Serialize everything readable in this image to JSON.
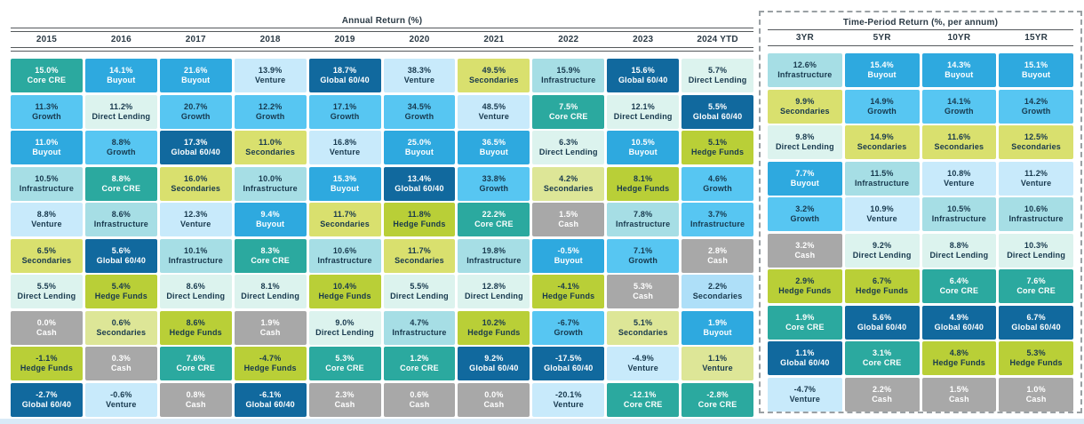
{
  "palette": {
    "cre": {
      "bg": "#2BA99F",
      "fg": "#FFFFFF"
    },
    "buy": {
      "bg": "#2EA9DF",
      "fg": "#FFFFFF"
    },
    "gro": {
      "bg": "#57C6F2",
      "fg": "#17384D"
    },
    "ven": {
      "bg": "#C8EAFB",
      "fg": "#17384D"
    },
    "g64": {
      "bg": "#11699E",
      "fg": "#FFFFFF"
    },
    "dl": {
      "bg": "#DCF3EE",
      "fg": "#17384D"
    },
    "inf": {
      "bg": "#A6DEE5",
      "fg": "#17384D"
    },
    "sec": {
      "bg": "#D9E06E",
      "fg": "#17384D"
    },
    "sec2": {
      "bg": "#DDE697",
      "fg": "#17384D"
    },
    "hf": {
      "bg": "#B9CF37",
      "fg": "#17384D"
    },
    "cash": {
      "bg": "#A8A8A8",
      "fg": "#FFFFFF"
    },
    "lblu": {
      "bg": "#AEDFF8",
      "fg": "#17384D"
    }
  },
  "chart_data": {
    "type": "table",
    "annual": {
      "title": "Annual Return (%)",
      "columns": [
        {
          "year": "2015",
          "cells": [
            {
              "v": "15.0%",
              "l": "Core CRE",
              "c": "cre"
            },
            {
              "v": "11.3%",
              "l": "Growth",
              "c": "gro"
            },
            {
              "v": "11.0%",
              "l": "Buyout",
              "c": "buy"
            },
            {
              "v": "10.5%",
              "l": "Infrastructure",
              "c": "inf"
            },
            {
              "v": "8.8%",
              "l": "Venture",
              "c": "ven"
            },
            {
              "v": "6.5%",
              "l": "Secondaries",
              "c": "sec"
            },
            {
              "v": "5.5%",
              "l": "Direct Lending",
              "c": "dl"
            },
            {
              "v": "0.0%",
              "l": "Cash",
              "c": "cash"
            },
            {
              "v": "-1.1%",
              "l": "Hedge Funds",
              "c": "hf"
            },
            {
              "v": "-2.7%",
              "l": "Global 60/40",
              "c": "g64"
            }
          ]
        },
        {
          "year": "2016",
          "cells": [
            {
              "v": "14.1%",
              "l": "Buyout",
              "c": "buy"
            },
            {
              "v": "11.2%",
              "l": "Direct Lending",
              "c": "dl"
            },
            {
              "v": "8.8%",
              "l": "Growth",
              "c": "gro"
            },
            {
              "v": "8.8%",
              "l": "Core CRE",
              "c": "cre"
            },
            {
              "v": "8.6%",
              "l": "Infrastructure",
              "c": "inf"
            },
            {
              "v": "5.6%",
              "l": "Global 60/40",
              "c": "g64"
            },
            {
              "v": "5.4%",
              "l": "Hedge Funds",
              "c": "hf"
            },
            {
              "v": "0.6%",
              "l": "Secondaries",
              "c": "sec2"
            },
            {
              "v": "0.3%",
              "l": "Cash",
              "c": "cash"
            },
            {
              "v": "-0.6%",
              "l": "Venture",
              "c": "ven"
            }
          ]
        },
        {
          "year": "2017",
          "cells": [
            {
              "v": "21.6%",
              "l": "Buyout",
              "c": "buy"
            },
            {
              "v": "20.7%",
              "l": "Growth",
              "c": "gro"
            },
            {
              "v": "17.3%",
              "l": "Global 60/40",
              "c": "g64"
            },
            {
              "v": "16.0%",
              "l": "Secondaries",
              "c": "sec"
            },
            {
              "v": "12.3%",
              "l": "Venture",
              "c": "ven"
            },
            {
              "v": "10.1%",
              "l": "Infrastructure",
              "c": "inf"
            },
            {
              "v": "8.6%",
              "l": "Direct Lending",
              "c": "dl"
            },
            {
              "v": "8.6%",
              "l": "Hedge Funds",
              "c": "hf"
            },
            {
              "v": "7.6%",
              "l": "Core CRE",
              "c": "cre"
            },
            {
              "v": "0.8%",
              "l": "Cash",
              "c": "cash"
            }
          ]
        },
        {
          "year": "2018",
          "cells": [
            {
              "v": "13.9%",
              "l": "Venture",
              "c": "ven"
            },
            {
              "v": "12.2%",
              "l": "Growth",
              "c": "gro"
            },
            {
              "v": "11.0%",
              "l": "Secondaries",
              "c": "sec"
            },
            {
              "v": "10.0%",
              "l": "Infrastructure",
              "c": "inf"
            },
            {
              "v": "9.4%",
              "l": "Buyout",
              "c": "buy"
            },
            {
              "v": "8.3%",
              "l": "Core CRE",
              "c": "cre"
            },
            {
              "v": "8.1%",
              "l": "Direct Lending",
              "c": "dl"
            },
            {
              "v": "1.9%",
              "l": "Cash",
              "c": "cash"
            },
            {
              "v": "-4.7%",
              "l": "Hedge Funds",
              "c": "hf"
            },
            {
              "v": "-6.1%",
              "l": "Global 60/40",
              "c": "g64"
            }
          ]
        },
        {
          "year": "2019",
          "cells": [
            {
              "v": "18.7%",
              "l": "Global 60/40",
              "c": "g64"
            },
            {
              "v": "17.1%",
              "l": "Growth",
              "c": "gro"
            },
            {
              "v": "16.8%",
              "l": "Venture",
              "c": "ven"
            },
            {
              "v": "15.3%",
              "l": "Buyout",
              "c": "buy"
            },
            {
              "v": "11.7%",
              "l": "Secondaries",
              "c": "sec"
            },
            {
              "v": "10.6%",
              "l": "Infrastructure",
              "c": "inf"
            },
            {
              "v": "10.4%",
              "l": "Hedge Funds",
              "c": "hf"
            },
            {
              "v": "9.0%",
              "l": "Direct Lending",
              "c": "dl"
            },
            {
              "v": "5.3%",
              "l": "Core CRE",
              "c": "cre"
            },
            {
              "v": "2.3%",
              "l": "Cash",
              "c": "cash"
            }
          ]
        },
        {
          "year": "2020",
          "cells": [
            {
              "v": "38.3%",
              "l": "Venture",
              "c": "ven"
            },
            {
              "v": "34.5%",
              "l": "Growth",
              "c": "gro"
            },
            {
              "v": "25.0%",
              "l": "Buyout",
              "c": "buy"
            },
            {
              "v": "13.4%",
              "l": "Global 60/40",
              "c": "g64"
            },
            {
              "v": "11.8%",
              "l": "Hedge Funds",
              "c": "hf"
            },
            {
              "v": "11.7%",
              "l": "Secondaries",
              "c": "sec"
            },
            {
              "v": "5.5%",
              "l": "Direct Lending",
              "c": "dl"
            },
            {
              "v": "4.7%",
              "l": "Infrastructure",
              "c": "inf"
            },
            {
              "v": "1.2%",
              "l": "Core CRE",
              "c": "cre"
            },
            {
              "v": "0.6%",
              "l": "Cash",
              "c": "cash"
            }
          ]
        },
        {
          "year": "2021",
          "cells": [
            {
              "v": "49.5%",
              "l": "Secondaries",
              "c": "sec"
            },
            {
              "v": "48.5%",
              "l": "Venture",
              "c": "ven"
            },
            {
              "v": "36.5%",
              "l": "Buyout",
              "c": "buy"
            },
            {
              "v": "33.8%",
              "l": "Growth",
              "c": "gro"
            },
            {
              "v": "22.2%",
              "l": "Core CRE",
              "c": "cre"
            },
            {
              "v": "19.8%",
              "l": "Infrastructure",
              "c": "inf"
            },
            {
              "v": "12.8%",
              "l": "Direct Lending",
              "c": "dl"
            },
            {
              "v": "10.2%",
              "l": "Hedge Funds",
              "c": "hf"
            },
            {
              "v": "9.2%",
              "l": "Global 60/40",
              "c": "g64"
            },
            {
              "v": "0.0%",
              "l": "Cash",
              "c": "cash"
            }
          ]
        },
        {
          "year": "2022",
          "cells": [
            {
              "v": "15.9%",
              "l": "Infrastructure",
              "c": "inf"
            },
            {
              "v": "7.5%",
              "l": "Core CRE",
              "c": "cre"
            },
            {
              "v": "6.3%",
              "l": "Direct Lending",
              "c": "dl"
            },
            {
              "v": "4.2%",
              "l": "Secondaries",
              "c": "sec2"
            },
            {
              "v": "1.5%",
              "l": "Cash",
              "c": "cash"
            },
            {
              "v": "-0.5%",
              "l": "Buyout",
              "c": "buy"
            },
            {
              "v": "-4.1%",
              "l": "Hedge Funds",
              "c": "hf"
            },
            {
              "v": "-6.7%",
              "l": "Growth",
              "c": "gro"
            },
            {
              "v": "-17.5%",
              "l": "Global 60/40",
              "c": "g64"
            },
            {
              "v": "-20.1%",
              "l": "Venture",
              "c": "ven"
            }
          ]
        },
        {
          "year": "2023",
          "cells": [
            {
              "v": "15.6%",
              "l": "Global 60/40",
              "c": "g64"
            },
            {
              "v": "12.1%",
              "l": "Direct Lending",
              "c": "dl"
            },
            {
              "v": "10.5%",
              "l": "Buyout",
              "c": "buy"
            },
            {
              "v": "8.1%",
              "l": "Hedge Funds",
              "c": "hf"
            },
            {
              "v": "7.8%",
              "l": "Infrastructure",
              "c": "inf"
            },
            {
              "v": "7.1%",
              "l": "Growth",
              "c": "gro"
            },
            {
              "v": "5.3%",
              "l": "Cash",
              "c": "cash"
            },
            {
              "v": "5.1%",
              "l": "Secondaries",
              "c": "sec2"
            },
            {
              "v": "-4.9%",
              "l": "Venture",
              "c": "ven"
            },
            {
              "v": "-12.1%",
              "l": "Core CRE",
              "c": "cre"
            }
          ]
        },
        {
          "year": "2024 YTD",
          "cells": [
            {
              "v": "5.7%",
              "l": "Direct Lending",
              "c": "dl"
            },
            {
              "v": "5.5%",
              "l": "Global 60/40",
              "c": "g64"
            },
            {
              "v": "5.1%",
              "l": "Hedge Funds",
              "c": "hf"
            },
            {
              "v": "4.6%",
              "l": "Growth",
              "c": "gro"
            },
            {
              "v": "3.7%",
              "l": "Infrastructure",
              "c": "gro"
            },
            {
              "v": "2.8%",
              "l": "Cash",
              "c": "cash"
            },
            {
              "v": "2.2%",
              "l": "Secondaries",
              "c": "lblu"
            },
            {
              "v": "1.9%",
              "l": "Buyout",
              "c": "buy"
            },
            {
              "v": "1.1%",
              "l": "Venture",
              "c": "sec2"
            },
            {
              "v": "-2.8%",
              "l": "Core CRE",
              "c": "cre"
            }
          ]
        }
      ]
    },
    "period": {
      "title": "Time-Period Return (%, per annum)",
      "columns": [
        {
          "year": "3YR",
          "cells": [
            {
              "v": "12.6%",
              "l": "Infrastructure",
              "c": "inf"
            },
            {
              "v": "9.9%",
              "l": "Secondaries",
              "c": "sec"
            },
            {
              "v": "9.8%",
              "l": "Direct Lending",
              "c": "dl"
            },
            {
              "v": "7.7%",
              "l": "Buyout",
              "c": "buy"
            },
            {
              "v": "3.2%",
              "l": "Growth",
              "c": "gro"
            },
            {
              "v": "3.2%",
              "l": "Cash",
              "c": "cash"
            },
            {
              "v": "2.9%",
              "l": "Hedge Funds",
              "c": "hf"
            },
            {
              "v": "1.9%",
              "l": "Core CRE",
              "c": "cre"
            },
            {
              "v": "1.1%",
              "l": "Global 60/40",
              "c": "g64"
            },
            {
              "v": "-4.7%",
              "l": "Venture",
              "c": "ven"
            }
          ]
        },
        {
          "year": "5YR",
          "cells": [
            {
              "v": "15.4%",
              "l": "Buyout",
              "c": "buy"
            },
            {
              "v": "14.9%",
              "l": "Growth",
              "c": "gro"
            },
            {
              "v": "14.9%",
              "l": "Secondaries",
              "c": "sec"
            },
            {
              "v": "11.5%",
              "l": "Infrastructure",
              "c": "inf"
            },
            {
              "v": "10.9%",
              "l": "Venture",
              "c": "ven"
            },
            {
              "v": "9.2%",
              "l": "Direct Lending",
              "c": "dl"
            },
            {
              "v": "6.7%",
              "l": "Hedge Funds",
              "c": "hf"
            },
            {
              "v": "5.6%",
              "l": "Global 60/40",
              "c": "g64"
            },
            {
              "v": "3.1%",
              "l": "Core CRE",
              "c": "cre"
            },
            {
              "v": "2.2%",
              "l": "Cash",
              "c": "cash"
            }
          ]
        },
        {
          "year": "10YR",
          "cells": [
            {
              "v": "14.3%",
              "l": "Buyout",
              "c": "buy"
            },
            {
              "v": "14.1%",
              "l": "Growth",
              "c": "gro"
            },
            {
              "v": "11.6%",
              "l": "Secondaries",
              "c": "sec"
            },
            {
              "v": "10.8%",
              "l": "Venture",
              "c": "ven"
            },
            {
              "v": "10.5%",
              "l": "Infrastructure",
              "c": "inf"
            },
            {
              "v": "8.8%",
              "l": "Direct Lending",
              "c": "dl"
            },
            {
              "v": "6.4%",
              "l": "Core CRE",
              "c": "cre"
            },
            {
              "v": "4.9%",
              "l": "Global 60/40",
              "c": "g64"
            },
            {
              "v": "4.8%",
              "l": "Hedge Funds",
              "c": "hf"
            },
            {
              "v": "1.5%",
              "l": "Cash",
              "c": "cash"
            }
          ]
        },
        {
          "year": "15YR",
          "cells": [
            {
              "v": "15.1%",
              "l": "Buyout",
              "c": "buy"
            },
            {
              "v": "14.2%",
              "l": "Growth",
              "c": "gro"
            },
            {
              "v": "12.5%",
              "l": "Secondaries",
              "c": "sec"
            },
            {
              "v": "11.2%",
              "l": "Venture",
              "c": "ven"
            },
            {
              "v": "10.6%",
              "l": "Infrastructure",
              "c": "inf"
            },
            {
              "v": "10.3%",
              "l": "Direct Lending",
              "c": "dl"
            },
            {
              "v": "7.6%",
              "l": "Core CRE",
              "c": "cre"
            },
            {
              "v": "6.7%",
              "l": "Global 60/40",
              "c": "g64"
            },
            {
              "v": "5.3%",
              "l": "Hedge Funds",
              "c": "hf"
            },
            {
              "v": "1.0%",
              "l": "Cash",
              "c": "cash"
            }
          ]
        }
      ]
    }
  }
}
